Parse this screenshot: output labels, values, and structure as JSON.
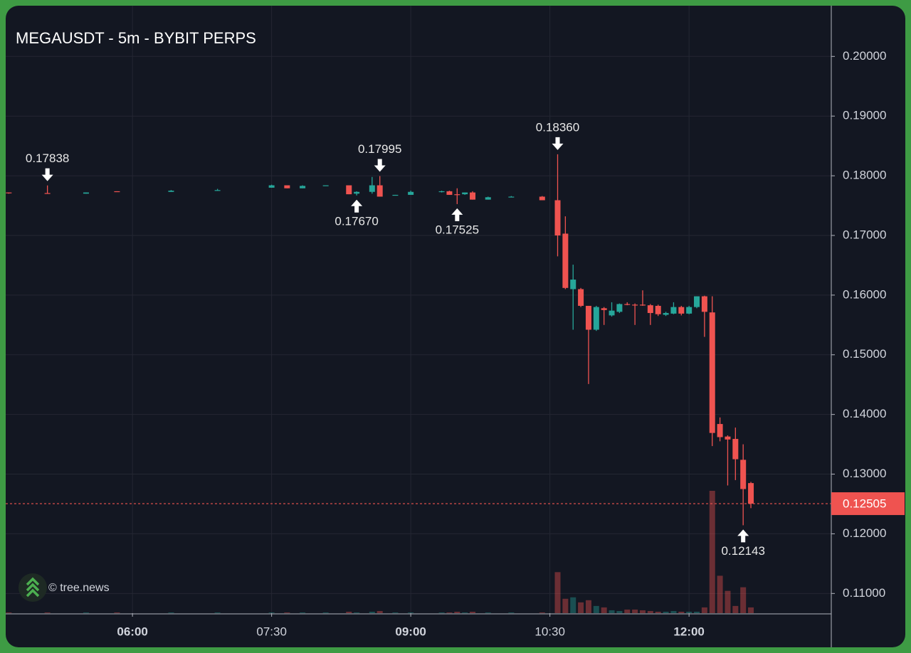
{
  "chart_data": {
    "type": "candlestick",
    "title": "MEGAUSDT - 5m - BYBIT PERPS",
    "watermark": "© tree.news",
    "up_color": "#26a69a",
    "down_color": "#ef5350",
    "grid": true,
    "xlim": [
      278,
      812
    ],
    "ylim": [
      0.1067,
      0.2085
    ],
    "xticks": [
      {
        "value": 360,
        "label": "06:00",
        "bold": true
      },
      {
        "value": 450,
        "label": "07:30",
        "bold": false
      },
      {
        "value": 540,
        "label": "09:00",
        "bold": true
      },
      {
        "value": 630,
        "label": "10:30",
        "bold": false
      },
      {
        "value": 720,
        "label": "12:00",
        "bold": true
      }
    ],
    "yticks": [
      {
        "value": 0.11,
        "label": "0.11000"
      },
      {
        "value": 0.12,
        "label": "0.12000"
      },
      {
        "value": 0.13,
        "label": "0.13000"
      },
      {
        "value": 0.14,
        "label": "0.14000"
      },
      {
        "value": 0.15,
        "label": "0.15000"
      },
      {
        "value": 0.16,
        "label": "0.16000"
      },
      {
        "value": 0.17,
        "label": "0.17000"
      },
      {
        "value": 0.18,
        "label": "0.18000"
      },
      {
        "value": 0.19,
        "label": "0.19000"
      },
      {
        "value": 0.2,
        "label": "0.20000"
      }
    ],
    "last_price": {
      "value": 0.12505,
      "label": "0.12505"
    },
    "x": [
      280,
      305,
      330,
      350,
      385,
      415,
      450,
      460,
      470,
      485,
      500,
      505,
      515,
      520,
      530,
      540,
      560,
      565,
      570,
      575,
      580,
      590,
      605,
      625,
      635,
      640,
      645,
      650,
      655,
      660,
      665,
      670,
      675,
      680,
      685,
      690,
      695,
      700,
      705,
      710,
      715,
      720,
      725,
      730,
      735,
      740,
      745,
      750,
      755,
      760
    ],
    "open": [
      0.1772,
      0.1771,
      0.177,
      0.1774,
      0.1773,
      0.1775,
      0.178,
      0.1784,
      0.1779,
      0.1784,
      0.1784,
      0.177,
      0.1773,
      0.1784,
      0.1768,
      0.1768,
      0.1773,
      0.1774,
      0.1769,
      0.1769,
      0.1772,
      0.176,
      0.1765,
      0.1765,
      0.1759,
      0.1703,
      0.161,
      0.161,
      0.1582,
      0.1542,
      0.1578,
      0.1566,
      0.1572,
      0.1585,
      0.1584,
      0.1584,
      0.1583,
      0.1582,
      0.1567,
      0.1569,
      0.158,
      0.1569,
      0.158,
      0.1598,
      0.1571,
      0.1384,
      0.1363,
      0.1359,
      0.1324,
      0.1285
    ],
    "high": [
      0.1772,
      0.17838,
      0.1772,
      0.1774,
      0.1776,
      0.1778,
      0.1785,
      0.1784,
      0.1784,
      0.1784,
      0.1784,
      0.1774,
      0.1798,
      0.17995,
      0.1768,
      0.1775,
      0.1775,
      0.1775,
      0.1779,
      0.1772,
      0.1774,
      0.1765,
      0.1766,
      0.1766,
      0.1836,
      0.1732,
      0.1651,
      0.1612,
      0.1582,
      0.1582,
      0.158,
      0.1588,
      0.1586,
      0.1588,
      0.1586,
      0.1608,
      0.1585,
      0.1584,
      0.1572,
      0.1588,
      0.1582,
      0.1582,
      0.1598,
      0.1599,
      0.1598,
      0.1395,
      0.1365,
      0.1378,
      0.135,
      0.1287
    ],
    "low": [
      0.177,
      0.177,
      0.177,
      0.1773,
      0.1773,
      0.1775,
      0.178,
      0.1779,
      0.1779,
      0.1783,
      0.1769,
      0.1767,
      0.177,
      0.1765,
      0.1767,
      0.1768,
      0.1772,
      0.1768,
      0.17525,
      0.1768,
      0.176,
      0.176,
      0.1764,
      0.1759,
      0.1665,
      0.161,
      0.1542,
      0.158,
      0.1451,
      0.154,
      0.155,
      0.1564,
      0.157,
      0.1583,
      0.155,
      0.1582,
      0.155,
      0.1565,
      0.1565,
      0.1568,
      0.1566,
      0.1568,
      0.1578,
      0.153,
      0.1347,
      0.1355,
      0.1281,
      0.129,
      0.12143,
      0.1243
    ],
    "close": [
      0.1771,
      0.177,
      0.1772,
      0.1773,
      0.1775,
      0.1776,
      0.1784,
      0.1779,
      0.1783,
      0.1784,
      0.1769,
      0.1773,
      0.1784,
      0.1765,
      0.1768,
      0.1773,
      0.1774,
      0.1768,
      0.1768,
      0.1772,
      0.176,
      0.1764,
      0.1765,
      0.1759,
      0.17,
      0.1612,
      0.1626,
      0.1582,
      0.1542,
      0.158,
      0.1575,
      0.1574,
      0.1585,
      0.1584,
      0.1583,
      0.1583,
      0.157,
      0.1568,
      0.157,
      0.158,
      0.1569,
      0.158,
      0.1598,
      0.1572,
      0.1369,
      0.1362,
      0.1358,
      0.1325,
      0.1275,
      0.12505
    ],
    "volume": [
      1,
      1,
      1,
      1,
      1,
      1,
      1,
      1,
      1,
      1,
      2,
      1,
      2,
      3,
      1,
      1,
      1,
      1,
      2,
      1,
      2,
      1,
      1,
      1,
      57,
      20,
      22,
      15,
      18,
      10,
      8,
      4,
      3,
      5,
      5,
      4,
      3,
      2,
      2,
      3,
      2,
      2,
      2,
      8,
      170,
      52,
      31,
      10,
      36,
      8
    ],
    "annotations": [
      {
        "x": 305,
        "value": 0.17838,
        "label": "0.17838",
        "side": "above"
      },
      {
        "x": 505,
        "value": 0.1767,
        "label": "0.17670",
        "side": "below"
      },
      {
        "x": 520,
        "value": 0.17995,
        "label": "0.17995",
        "side": "above"
      },
      {
        "x": 570,
        "value": 0.17525,
        "label": "0.17525",
        "side": "below"
      },
      {
        "x": 635,
        "value": 0.1836,
        "label": "0.18360",
        "side": "above"
      },
      {
        "x": 755,
        "value": 0.12143,
        "label": "0.12143",
        "side": "below"
      }
    ]
  }
}
